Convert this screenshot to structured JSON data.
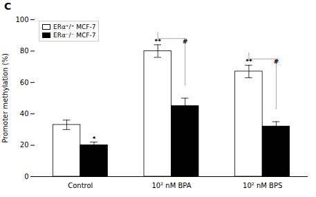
{
  "chart_data": {
    "type": "bar",
    "title": "C",
    "ylabel": "Promoter methylation (%)",
    "categories": [
      "Control",
      "10² nM BPA",
      "10² nM BPS"
    ],
    "series": [
      {
        "name": "ERα⁺/⁺ MCF-7",
        "color": "white",
        "values": [
          33,
          80,
          67
        ],
        "errors": [
          3,
          4,
          4
        ]
      },
      {
        "name": "ERα⁻/⁻ MCF-7",
        "color": "black",
        "values": [
          20,
          45,
          32
        ],
        "errors": [
          2,
          5,
          3
        ]
      }
    ],
    "edge_color": "black",
    "annotations": [
      {
        "category": "Control",
        "series": "ERα⁻/⁻ MCF-7",
        "height_of": "ERα⁻/⁻ MCF-7",
        "text": "*"
      },
      {
        "category": "10² nM BPA",
        "series": "ERα⁺/⁺ MCF-7",
        "height_of": "ERα⁺/⁺ MCF-7",
        "text": "**"
      },
      {
        "category": "10² nM BPA",
        "series": "ERα⁻/⁻ MCF-7",
        "height_of": "ERα⁺/⁺ MCF-7",
        "text": "#"
      },
      {
        "category": "10² nM BPS",
        "series": "ERα⁺/⁺ MCF-7",
        "height_of": "ERα⁺/⁺ MCF-7",
        "text": "**"
      },
      {
        "category": "10² nM BPS",
        "series": "ERα⁻/⁻ MCF-7",
        "height_of": "ERα⁺/⁺ MCF-7",
        "text": "#"
      }
    ],
    "brackets": [
      {
        "category": "10² nM BPA",
        "y": 88,
        "ends": [
          92,
          58
        ],
        "color": "gray"
      },
      {
        "category": "10² nM BPS",
        "y": 75,
        "ends": [
          79,
          43
        ],
        "color": "gray"
      }
    ],
    "ylim": [
      0,
      100
    ],
    "yticks": [
      0,
      20,
      40,
      60,
      80,
      100
    ],
    "grid": false,
    "legend": "upper left"
  }
}
